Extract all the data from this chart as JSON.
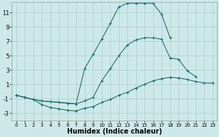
{
  "xlabel": "Humidex (Indice chaleur)",
  "background_color": "#cce8e8",
  "grid_color": "#aacccc",
  "line_color": "#1a6b6b",
  "xlim": [
    -0.5,
    23.5
  ],
  "ylim": [
    -4.0,
    12.5
  ],
  "xticks": [
    0,
    1,
    2,
    3,
    4,
    5,
    6,
    7,
    8,
    9,
    10,
    11,
    12,
    13,
    14,
    15,
    16,
    17,
    18,
    19,
    20,
    21,
    22,
    23
  ],
  "yticks": [
    -3,
    -1,
    1,
    3,
    5,
    7,
    9,
    11
  ],
  "line_top_x": [
    0,
    1,
    2,
    3,
    4,
    5,
    6,
    7,
    8,
    9,
    10,
    11,
    12,
    13,
    14,
    15,
    16,
    17,
    18
  ],
  "line_top_y": [
    -0.5,
    -0.8,
    -1.1,
    -1.3,
    -1.4,
    -1.5,
    -1.6,
    -1.7,
    3.2,
    5.2,
    7.3,
    9.5,
    11.8,
    12.3,
    12.3,
    12.3,
    12.3,
    10.8,
    7.5
  ],
  "line_mid_x": [
    0,
    1,
    2,
    3,
    4,
    5,
    6,
    7,
    8,
    9,
    10,
    11,
    12,
    13,
    14,
    15,
    16,
    17,
    18,
    19,
    20,
    21
  ],
  "line_mid_y": [
    -0.5,
    -0.8,
    -1.1,
    -1.3,
    -1.4,
    -1.5,
    -1.6,
    -1.7,
    -1.3,
    -0.8,
    1.5,
    3.2,
    5.0,
    6.5,
    7.2,
    7.5,
    7.5,
    7.3,
    4.7,
    4.5,
    2.9,
    2.1
  ],
  "line_bot_x": [
    0,
    1,
    2,
    3,
    4,
    5,
    6,
    7,
    8,
    9,
    10,
    11,
    12,
    13,
    14,
    15,
    16,
    17,
    18,
    19,
    20,
    21,
    22,
    23
  ],
  "line_bot_y": [
    -0.5,
    -0.8,
    -1.1,
    -1.8,
    -2.2,
    -2.4,
    -2.6,
    -2.7,
    -2.3,
    -2.1,
    -1.5,
    -1.1,
    -0.5,
    -0.1,
    0.5,
    1.0,
    1.5,
    1.8,
    2.0,
    1.9,
    1.7,
    1.4,
    1.2,
    1.2
  ]
}
